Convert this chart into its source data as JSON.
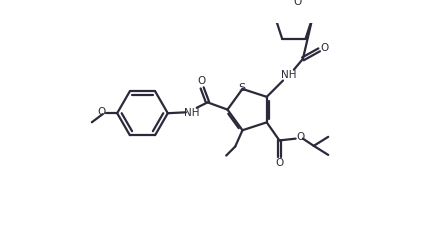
{
  "background_color": "#ffffff",
  "line_color": "#2a2a3a",
  "line_width": 1.6,
  "figure_width": 4.45,
  "figure_height": 2.38,
  "dpi": 100,
  "S_label": "S",
  "O_label": "O",
  "NH_label": "NH"
}
